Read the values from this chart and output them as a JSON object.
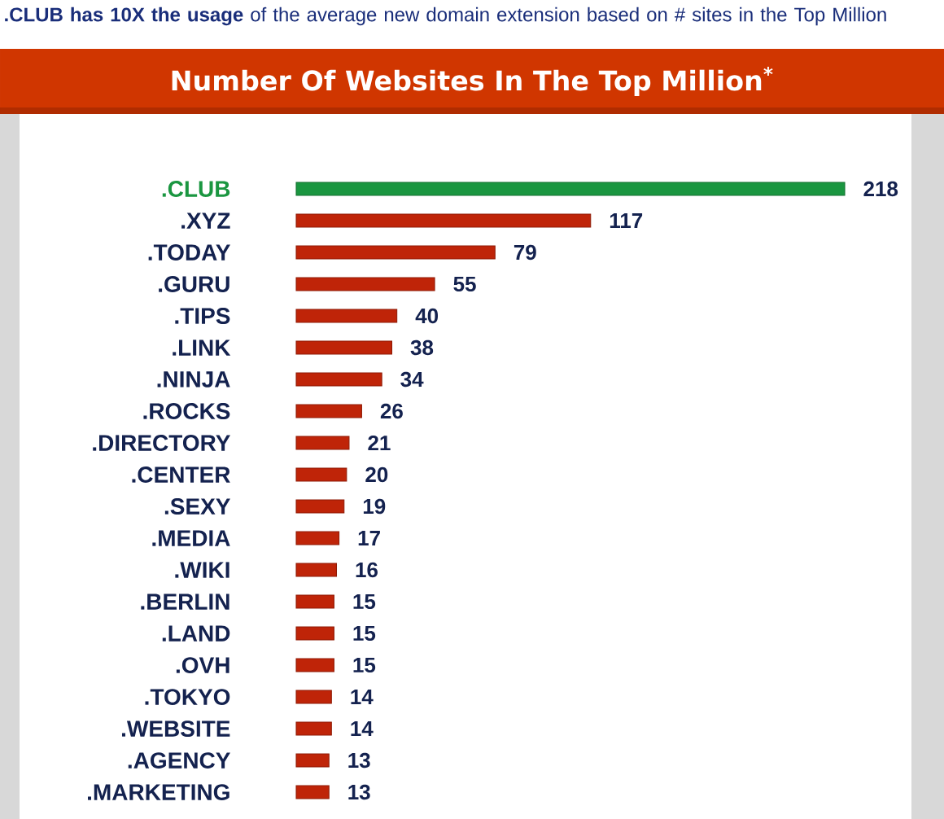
{
  "chart_data": {
    "type": "bar",
    "orientation": "horizontal",
    "title": "Number Of Websites In The Top Million$^{*}$",
    "subtitle": "**.CLUB has 10X the usage** of the average new domain extension based on # sites in the Top Million",
    "categories": [
      ".CLUB",
      ".XYZ",
      ".TODAY",
      ".GURU",
      ".TIPS",
      ".LINK",
      ".NINJA",
      ".ROCKS",
      ".DIRECTORY",
      ".CENTER",
      ".SEXY",
      ".MEDIA",
      ".WIKI",
      ".BERLIN",
      ".LAND",
      ".OVH",
      ".TOKYO",
      ".WEBSITE",
      ".AGENCY",
      ".MARKETING"
    ],
    "values": [
      218,
      117,
      79,
      55,
      40,
      38,
      34,
      26,
      21,
      20,
      19,
      17,
      16,
      15,
      15,
      15,
      14,
      14,
      13,
      13
    ],
    "colors": [
      "#1a9640",
      "#bf2408",
      "#bf2408",
      "#bf2408",
      "#bf2408",
      "#bf2408",
      "#bf2408",
      "#bf2408",
      "#bf2408",
      "#bf2408",
      "#bf2408",
      "#bf2408",
      "#bf2408",
      "#bf2408",
      "#bf2408",
      "#bf2408",
      "#bf2408",
      "#bf2408",
      "#bf2408",
      "#bf2408"
    ],
    "data_labels": true
  }
}
